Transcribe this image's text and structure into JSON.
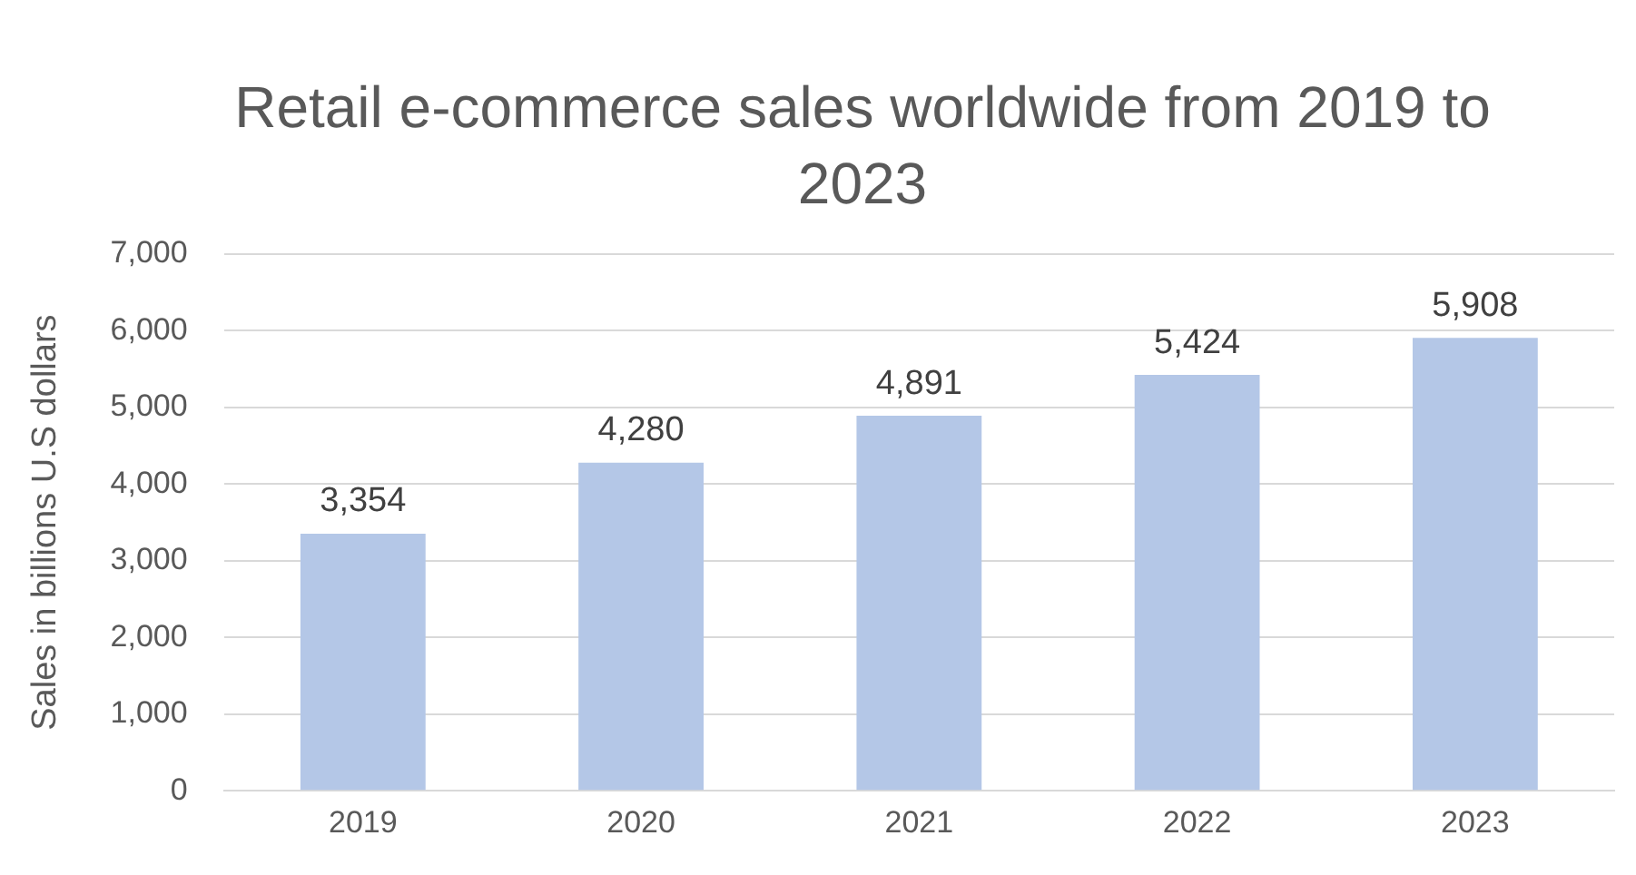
{
  "chart_data": {
    "type": "bar",
    "title": "Retail e-commerce sales worldwide from 2019 to 2023",
    "ylabel": "Sales in billions U.S dollars",
    "categories": [
      "2019",
      "2020",
      "2021",
      "2022",
      "2023"
    ],
    "values": [
      3354,
      4280,
      4891,
      5424,
      5908
    ],
    "value_labels": [
      "3,354",
      "4,280",
      "4,891",
      "5,424",
      "5,908"
    ],
    "color": "#b4c7e7",
    "ylim": [
      0,
      7000
    ],
    "yticks": [
      {
        "value": 0,
        "label": "0"
      },
      {
        "value": 1000,
        "label": "1,000"
      },
      {
        "value": 2000,
        "label": "2,000"
      },
      {
        "value": 3000,
        "label": "3,000"
      },
      {
        "value": 4000,
        "label": "4,000"
      },
      {
        "value": 5000,
        "label": "5,000"
      },
      {
        "value": 6000,
        "label": "6,000"
      },
      {
        "value": 7000,
        "label": "7,000"
      }
    ],
    "grid": "y",
    "legend": false
  }
}
